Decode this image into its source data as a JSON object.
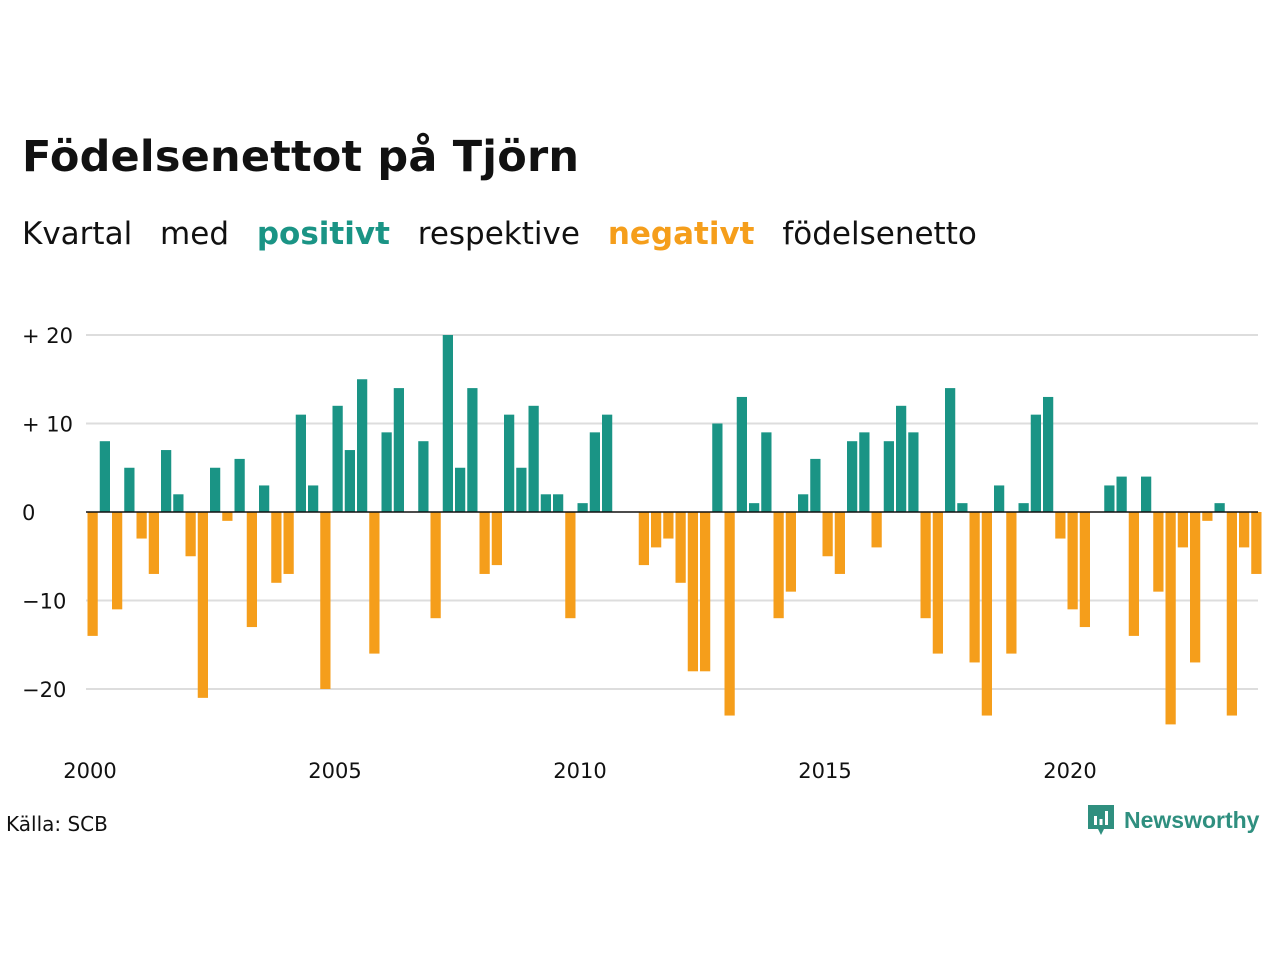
{
  "header": {
    "title": "Födelsenettot på Tjörn",
    "subtitle_parts": [
      "Kvartal",
      "med",
      "positivt",
      "respektive",
      "negativt",
      "födelsenetto"
    ]
  },
  "colors": {
    "positive": "#1a9485",
    "negative": "#f59e1b",
    "grid": "#dddddd",
    "zero": "#111111"
  },
  "footer": {
    "source": "Källa: SCB",
    "brand": "Newsworthy",
    "brand_icon": "bar-chart-speech-bubble-icon"
  },
  "chart_data": {
    "type": "bar",
    "title": "Födelsenettot på Tjörn",
    "subtitle": "Kvartal med positivt respektive negativt födelsenetto",
    "ylim": [
      -25,
      20
    ],
    "yticks": [
      {
        "value": 20,
        "label": "+ 20"
      },
      {
        "value": 10,
        "label": "+ 10"
      },
      {
        "value": 0,
        "label": "0"
      },
      {
        "value": -10,
        "label": "−10"
      },
      {
        "value": -20,
        "label": "−20"
      }
    ],
    "x_start": "2000 Q1",
    "xticks": [
      {
        "year": 2000,
        "label": "2000"
      },
      {
        "year": 2005,
        "label": "2005"
      },
      {
        "year": 2010,
        "label": "2010"
      },
      {
        "year": 2015,
        "label": "2015"
      },
      {
        "year": 2020,
        "label": "2020"
      }
    ],
    "grid": true,
    "values": [
      -14,
      8,
      -11,
      5,
      -3,
      -7,
      7,
      2,
      -5,
      -21,
      5,
      -1,
      6,
      -13,
      3,
      -8,
      -7,
      11,
      3,
      -20,
      12,
      7,
      15,
      -16,
      9,
      14,
      0,
      8,
      -12,
      20,
      5,
      14,
      -7,
      -6,
      11,
      5,
      12,
      2,
      2,
      -12,
      1,
      9,
      11,
      0,
      0,
      -6,
      -4,
      -3,
      -8,
      -18,
      -18,
      10,
      -23,
      13,
      1,
      9,
      -12,
      -9,
      2,
      6,
      -5,
      -7,
      8,
      9,
      -4,
      8,
      12,
      9,
      -12,
      -16,
      14,
      1,
      -17,
      -23,
      3,
      -16,
      1,
      11,
      13,
      -3,
      -11,
      -13,
      0,
      3,
      4,
      -14,
      4,
      -9,
      -24,
      -4,
      -17,
      -1,
      1,
      -23,
      -4,
      -7
    ]
  }
}
